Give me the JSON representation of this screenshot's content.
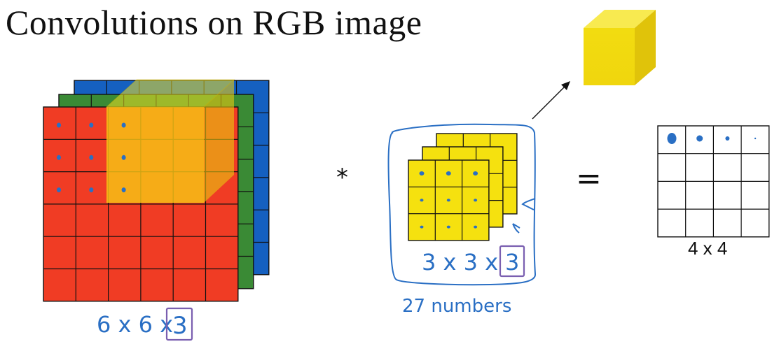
{
  "title": "Convolutions on RGB image",
  "input_label": "6x6x3",
  "filter_label": "3x3x3",
  "filter_count_label": "27 numbers",
  "multiply_symbol": "*",
  "equals_symbol": "=",
  "output_label": "4 x 4",
  "colors": {
    "red": "#f03c24",
    "green": "#3a8a35",
    "blue": "#1560c0",
    "yellow": "#f5e10f",
    "pen_blue": "#2a6fc4",
    "pen_purple": "#7a5fb0"
  }
}
